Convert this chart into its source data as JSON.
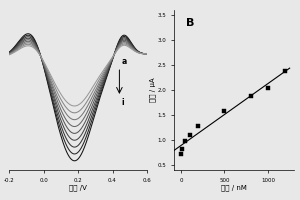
{
  "panel_A": {
    "xlabel": "电位 /V",
    "x_range": [
      -0.2,
      0.6
    ],
    "y_range": [
      -5.0,
      2.0
    ],
    "peak_x": 0.18,
    "n_curves": 9,
    "label_a": "a",
    "label_i": "i",
    "xticks": [
      -0.2,
      0.0,
      0.2,
      0.4,
      0.6
    ],
    "xticklabels": [
      "-0.2",
      "0.0",
      "0.2",
      "0.4",
      "0.6"
    ]
  },
  "panel_B": {
    "label": "B",
    "xlabel": "浓度 / nM",
    "ylabel": "电流 / μA",
    "x_data": [
      0,
      10,
      50,
      100,
      200,
      500,
      800,
      1000,
      1200
    ],
    "y_data": [
      0.72,
      0.82,
      0.98,
      1.1,
      1.28,
      1.58,
      1.88,
      2.05,
      2.38
    ],
    "xlim": [
      -80,
      1300
    ],
    "ylim": [
      0.4,
      3.6
    ],
    "yticks": [
      0.5,
      1.0,
      1.5,
      2.0,
      2.5,
      3.0,
      3.5
    ],
    "yticklabels": [
      "0.5",
      "1.0",
      "1.5",
      "2.0",
      "2.5",
      "3.0",
      "3.5"
    ],
    "xticks": [
      0,
      500,
      1000
    ],
    "xticklabels": [
      "0",
      "500",
      "1000"
    ]
  },
  "bg_color": "#e8e8e8"
}
